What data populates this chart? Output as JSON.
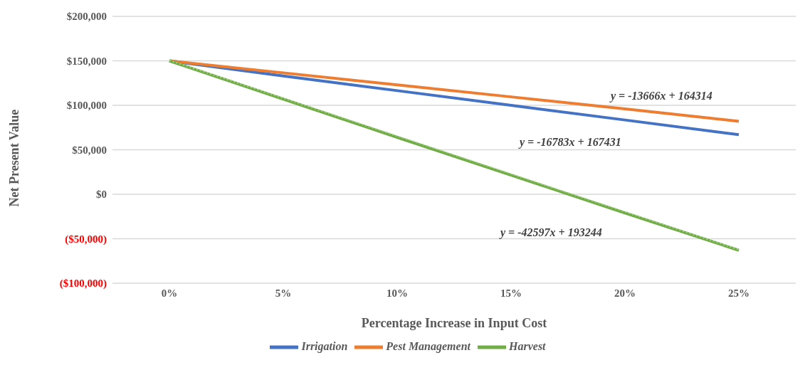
{
  "chart_data": {
    "type": "line",
    "xlabel": "Percentage Increase in Input  Cost",
    "ylabel": "Net Present Value",
    "categories": [
      "0%",
      "5%",
      "10%",
      "15%",
      "20%",
      "25%"
    ],
    "series": [
      {
        "name": "Irrigation",
        "color": "#4472c4",
        "values": [
          150000,
          133000,
          116500,
          100000,
          83500,
          67000
        ]
      },
      {
        "name": "Pest Management",
        "color": "#ed7d31",
        "values": [
          150000,
          136500,
          123000,
          109500,
          96000,
          82000
        ]
      },
      {
        "name": "Harvest",
        "color": "#70ad47",
        "values": [
          150000,
          107000,
          64000,
          21500,
          -21000,
          -63000
        ]
      },
      {
        "type": "line",
        "line_style": "dotted",
        "color": "#a9d18e",
        "values": [
          150600,
          108000,
          65500,
          22900,
          -19700,
          -62300
        ]
      }
    ],
    "ylim": [
      -100000,
      200000
    ],
    "yticks": [
      {
        "value": -100000,
        "label": "($100,000)"
      },
      {
        "value": -50000,
        "label": "($50,000)"
      },
      {
        "value": 0,
        "label": "$0"
      },
      {
        "value": 50000,
        "label": "$50,000"
      },
      {
        "value": 100000,
        "label": "$100,000"
      },
      {
        "value": 150000,
        "label": "$150,000"
      },
      {
        "value": 200000,
        "label": "$200,000"
      }
    ],
    "grid": "y",
    "legend": "bottom",
    "marker": "none",
    "line_style": "solid",
    "annotations": [
      "y = -13666x + 164314",
      "y = -16783x + 167431",
      "y = -42597x + 193244"
    ]
  }
}
